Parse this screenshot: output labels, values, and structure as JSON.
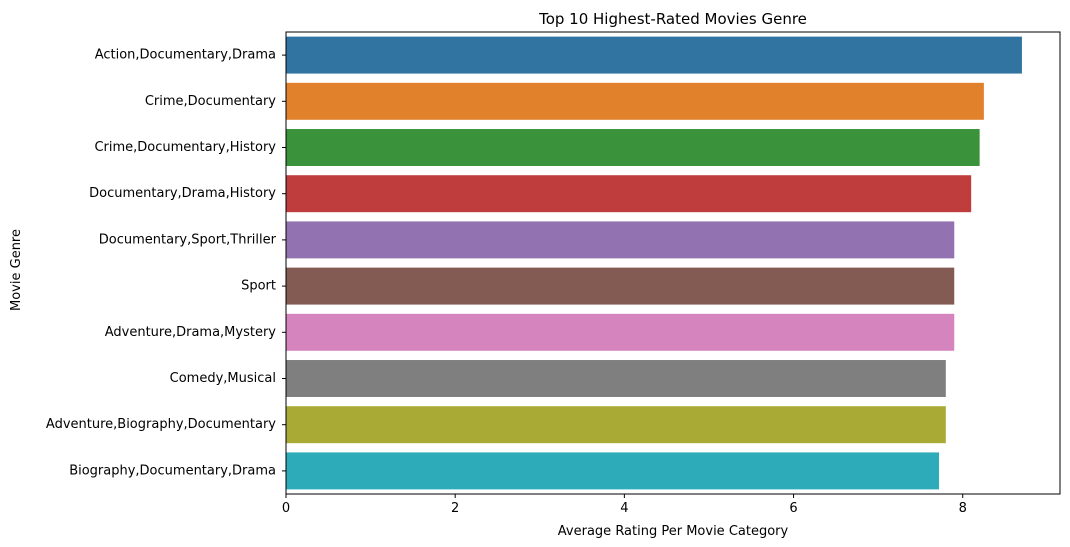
{
  "chart_data": {
    "type": "bar",
    "orientation": "horizontal",
    "title": "Top 10 Highest-Rated Movies Genre",
    "xlabel": "Average Rating Per Movie Category",
    "ylabel": "Movie Genre",
    "xlim": [
      0,
      9.15
    ],
    "xticks": [
      0,
      2,
      4,
      6,
      8
    ],
    "grid": false,
    "categories": [
      "Action,Documentary,Drama",
      "Crime,Documentary",
      "Crime,Documentary,History",
      "Documentary,Drama,History",
      "Documentary,Sport,Thriller",
      "Sport",
      "Adventure,Drama,Mystery",
      "Comedy,Musical",
      "Adventure,Biography,Documentary",
      "Biography,Documentary,Drama"
    ],
    "values": [
      8.7,
      8.25,
      8.2,
      8.1,
      7.9,
      7.9,
      7.9,
      7.8,
      7.8,
      7.72
    ],
    "colors": [
      "#3274a1",
      "#e1812c",
      "#3a923a",
      "#c03d3e",
      "#9372b2",
      "#845b53",
      "#d684bd",
      "#7f7f7f",
      "#a9aa35",
      "#2eabb8"
    ]
  }
}
